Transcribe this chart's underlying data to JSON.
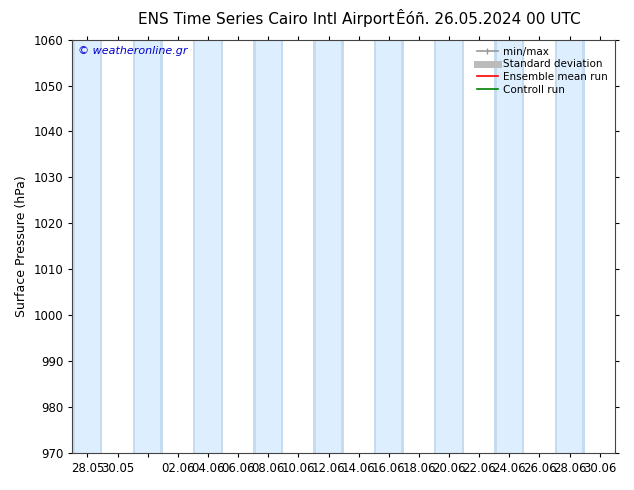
{
  "title_left": "ENS Time Series Cairo Intl Airport",
  "title_right": "Êóñ. 26.05.2024 00 UTC",
  "ylabel": "Surface Pressure (hPa)",
  "watermark": "© weatheronline.gr",
  "ylim": [
    970,
    1060
  ],
  "yticks": [
    970,
    980,
    990,
    1000,
    1010,
    1020,
    1030,
    1040,
    1050,
    1060
  ],
  "xtick_labels": [
    "28.05",
    "30.05",
    "",
    "02.06",
    "04.06",
    "06.06",
    "08.06",
    "10.06",
    "12.06",
    "14.06",
    "16.06",
    "18.06",
    "20.06",
    "22.06",
    "24.06",
    "26.06",
    "28.06",
    "30.06"
  ],
  "bg_color": "#ffffff",
  "plot_bg_color": "#ffffff",
  "band_light_color": "#ddeeff",
  "band_dark_color": "#c5dcf0",
  "legend_labels": [
    "min/max",
    "Standard deviation",
    "Ensemble mean run",
    "Controll run"
  ],
  "legend_line_colors": [
    "#999999",
    "#bbbbbb",
    "#ff0000",
    "#008000"
  ],
  "title_fontsize": 11,
  "tick_fontsize": 8.5,
  "ylabel_fontsize": 9
}
